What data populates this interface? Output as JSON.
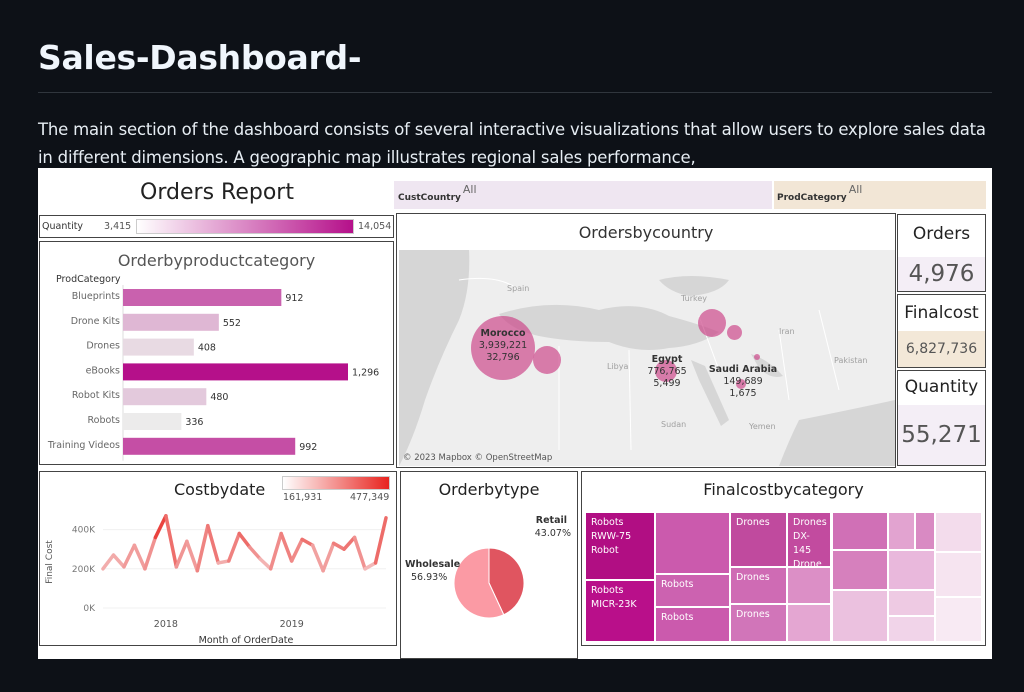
{
  "page": {
    "title": "Sales-Dashboard-",
    "intro": "The main section of the dashboard consists of several interactive visualizations that allow users to explore sales data in different dimensions. A geographic map illustrates regional sales performance,"
  },
  "dashboard": {
    "title": "Orders Report",
    "filters": {
      "country_label": "CustCountry",
      "country_value": "All",
      "category_label": "ProdCategory",
      "category_value": "All"
    },
    "quantity_legend": {
      "label": "Quantity",
      "min": "3,415",
      "max": "14,054"
    },
    "kpis": {
      "orders_label": "Orders",
      "orders_value": "4,976",
      "finalcost_label": "Finalcost",
      "finalcost_value": "6,827,736",
      "quantity_label": "Quantity",
      "quantity_value": "55,271"
    },
    "map": {
      "title": "Ordersbycountry",
      "attribution": "© 2023 Mapbox © OpenStreetMap",
      "place_names": {
        "spain": "Spain",
        "turkey": "Turkey",
        "iran": "Iran",
        "libya": "Libya",
        "pakistan": "Pakistan",
        "sudan": "Sudan",
        "yemen": "Yemen"
      },
      "points": [
        {
          "name": "Morocco",
          "final_cost": "3,939,221",
          "quantity": "32,796"
        },
        {
          "name": "Egypt",
          "final_cost": "776,765",
          "quantity": "5,499"
        },
        {
          "name": "Saudi Arabia",
          "final_cost": "149,689",
          "quantity": "1,675"
        }
      ]
    },
    "cost_legend": {
      "min": "161,931",
      "max": "477,349"
    },
    "orderbytype_title": "Orderbytype",
    "treemap": {
      "title": "Finalcostbycategory",
      "labels": {
        "robots_rww": "Robots\nRWW-75\nRobot",
        "robots_micr": "Robots\nMICR-23K",
        "robots_a": "Robots",
        "robots_b": "Robots",
        "drones_a": "Drones",
        "drones_dx": "Drones\nDX-145\nDrone",
        "drones_b": "Drones",
        "drones_c": "Drones"
      }
    },
    "colors": {
      "magenta": "#b5108a",
      "pink_light": "#ecc0dc",
      "red": "#e8231e",
      "retail": "#e05560",
      "wholesale": "#fb9aa4"
    }
  },
  "chart_data": [
    {
      "type": "bar",
      "orientation": "horizontal",
      "title": "Orderbyproductcategory",
      "category_header": "ProdCategory",
      "categories": [
        "Blueprints",
        "Drone Kits",
        "Drones",
        "eBooks",
        "Robot Kits",
        "Robots",
        "Training Videos"
      ],
      "values": [
        912,
        552,
        408,
        1296,
        480,
        336,
        992
      ],
      "value_labels": [
        "912",
        "552",
        "408",
        "1,296",
        "480",
        "336",
        "992"
      ]
    },
    {
      "type": "line",
      "title": "Costbydate",
      "xlabel": "Month of OrderDate",
      "ylabel": "Final Cost",
      "ylim": [
        0,
        500000
      ],
      "y_tick_labels": [
        "0K",
        "200K",
        "400K"
      ],
      "x_tick_labels": [
        "2018",
        "2019"
      ],
      "x_ticks": [
        "2018-01",
        "2019-01"
      ],
      "x": [
        "2017-07",
        "2017-08",
        "2017-09",
        "2017-10",
        "2017-11",
        "2017-12",
        "2018-01",
        "2018-02",
        "2018-03",
        "2018-04",
        "2018-05",
        "2018-06",
        "2018-07",
        "2018-08",
        "2018-09",
        "2018-10",
        "2018-11",
        "2018-12",
        "2019-01",
        "2019-02",
        "2019-03",
        "2019-04",
        "2019-05",
        "2019-06",
        "2019-07",
        "2019-08",
        "2019-09",
        "2019-10"
      ],
      "values": [
        200000,
        270000,
        210000,
        320000,
        200000,
        360000,
        470000,
        210000,
        340000,
        190000,
        420000,
        230000,
        240000,
        380000,
        310000,
        250000,
        200000,
        380000,
        240000,
        350000,
        320000,
        190000,
        330000,
        300000,
        360000,
        200000,
        230000,
        460000
      ]
    },
    {
      "type": "pie",
      "title": "Orderbytype",
      "labels": [
        "Retail",
        "Wholesale"
      ],
      "values": [
        43.07,
        56.93
      ],
      "value_labels": [
        "43.07%",
        "56.93%"
      ]
    }
  ]
}
